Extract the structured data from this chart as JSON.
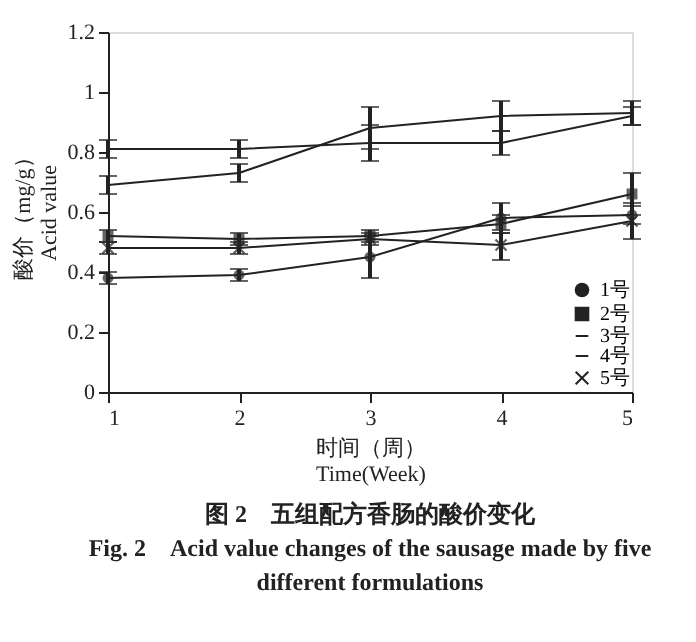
{
  "chart_data": {
    "type": "line",
    "xlabel": "时间（周）\nTime(Week)",
    "ylabel": "酸价（mg/g）\nAcid value",
    "x": [
      1,
      2,
      3,
      4,
      5
    ],
    "series": [
      {
        "name": "1号",
        "color": "#222222",
        "marker": "circle",
        "values": [
          0.38,
          0.39,
          0.45,
          0.58,
          0.59
        ],
        "errors": [
          0.02,
          0.02,
          0.07,
          0.05,
          0.03
        ]
      },
      {
        "name": "2号",
        "color": "#222222",
        "marker": "square",
        "values": [
          0.52,
          0.51,
          0.52,
          0.56,
          0.66
        ],
        "errors": [
          0.02,
          0.02,
          0.02,
          0.03,
          0.07
        ]
      },
      {
        "name": "3号",
        "color": "#222222",
        "marker": "none",
        "values": [
          0.81,
          0.81,
          0.83,
          0.83,
          0.92
        ],
        "errors": [
          0.03,
          0.03,
          0.06,
          0.04,
          0.03
        ]
      },
      {
        "name": "4号",
        "color": "#222222",
        "marker": "none",
        "values": [
          0.69,
          0.73,
          0.88,
          0.92,
          0.93
        ],
        "errors": [
          0.03,
          0.03,
          0.07,
          0.05,
          0.04
        ]
      },
      {
        "name": "5号",
        "color": "#222222",
        "marker": "cross",
        "values": [
          0.48,
          0.48,
          0.51,
          0.49,
          0.57
        ],
        "errors": [
          0.02,
          0.02,
          0.02,
          0.05,
          0.06
        ]
      }
    ],
    "xlim": [
      1,
      5
    ],
    "xticks": [
      1,
      2,
      3,
      4,
      5
    ],
    "ylim": [
      0,
      1.2
    ],
    "yticks": [
      0,
      0.2,
      0.4,
      0.6,
      0.8,
      1,
      1.2
    ],
    "grid": false,
    "legend": "bottom right",
    "line_style": "solid",
    "annotations": [
      "图 2　五组配方香肠的酸价变化",
      "Fig. 2　Acid value changes of the sausage made by five different formulations"
    ]
  }
}
